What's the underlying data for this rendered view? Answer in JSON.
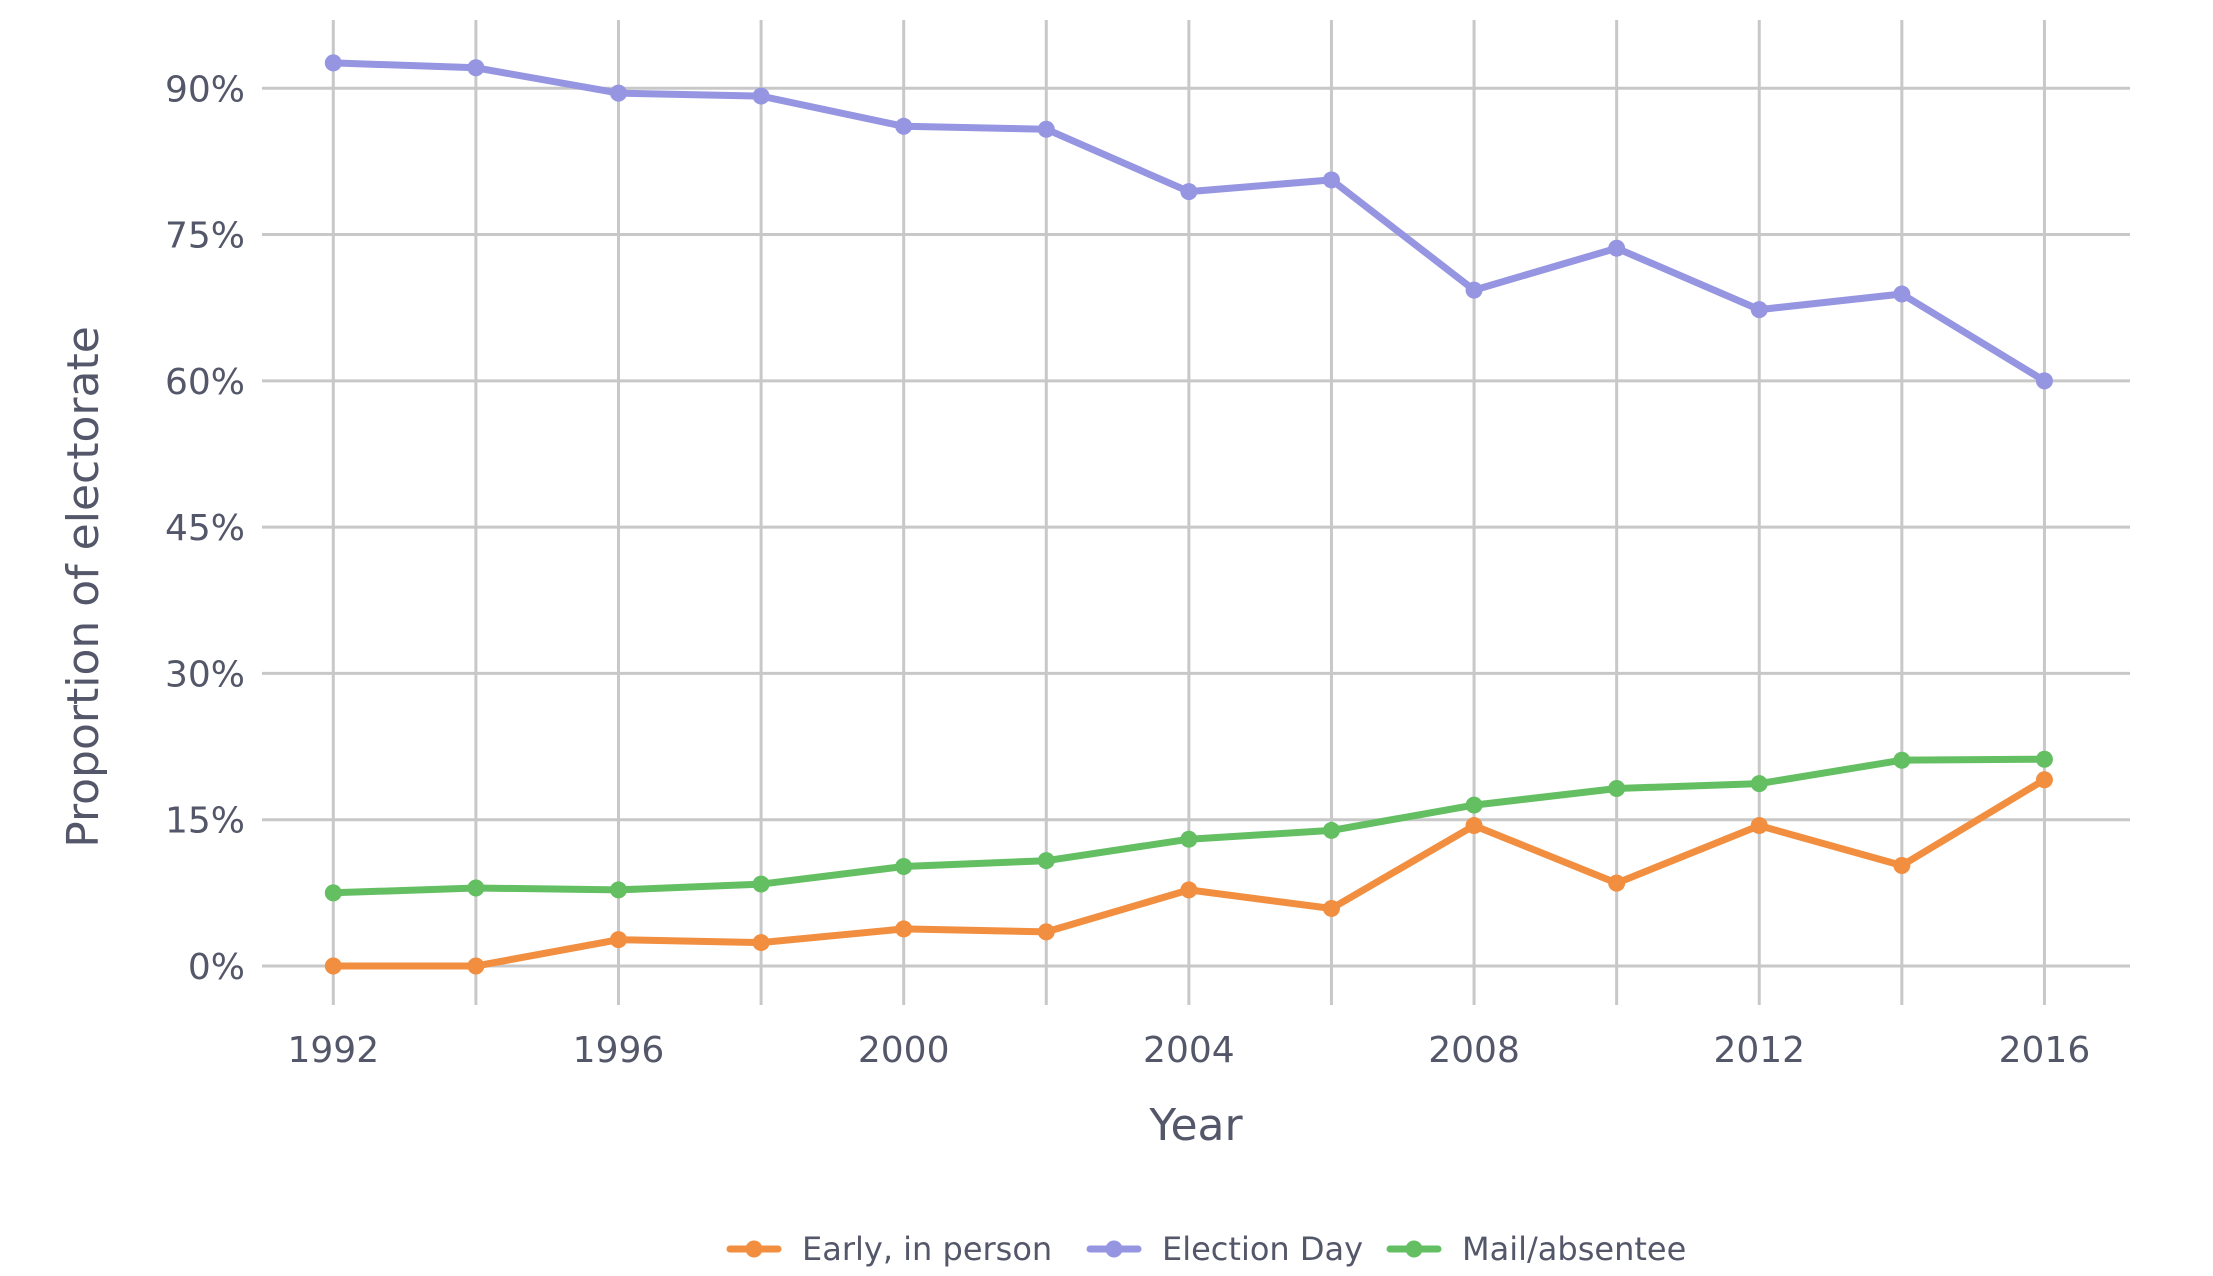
{
  "chart_data": {
    "type": "line",
    "title": "",
    "xlabel": "Year",
    "ylabel": "Proportion of electorate",
    "x": [
      1992,
      1994,
      1996,
      1998,
      2000,
      2002,
      2004,
      2006,
      2008,
      2010,
      2012,
      2014,
      2016
    ],
    "xlim": [
      1991,
      2017.2
    ],
    "ylim": [
      -4,
      97
    ],
    "x_ticks": [
      1992,
      1996,
      2000,
      2004,
      2008,
      2012,
      2016
    ],
    "x_tick_labels": [
      "1992",
      "1996",
      "2000",
      "2004",
      "2008",
      "2012",
      "2016"
    ],
    "y_ticks": [
      0,
      15,
      30,
      45,
      60,
      75,
      90
    ],
    "y_tick_labels": [
      "0%",
      "15%",
      "30%",
      "45%",
      "60%",
      "75%",
      "90%"
    ],
    "grid": true,
    "legend_position": "bottom",
    "series": [
      {
        "name": "Early, in person",
        "color": "#f28e3f",
        "values": [
          0.0,
          0.0,
          2.7,
          2.4,
          3.8,
          3.5,
          7.8,
          5.9,
          14.4,
          8.5,
          14.4,
          10.3,
          19.1
        ]
      },
      {
        "name": "Election Day",
        "color": "#9595e1",
        "values": [
          92.6,
          92.1,
          89.5,
          89.2,
          86.1,
          85.8,
          79.4,
          80.6,
          69.3,
          73.6,
          67.3,
          68.9,
          60.0
        ]
      },
      {
        "name": "Mail/absentee",
        "color": "#64bf63",
        "values": [
          7.5,
          8.0,
          7.8,
          8.4,
          10.2,
          10.8,
          13.0,
          13.9,
          16.5,
          18.2,
          18.7,
          21.1,
          21.2
        ]
      }
    ]
  }
}
